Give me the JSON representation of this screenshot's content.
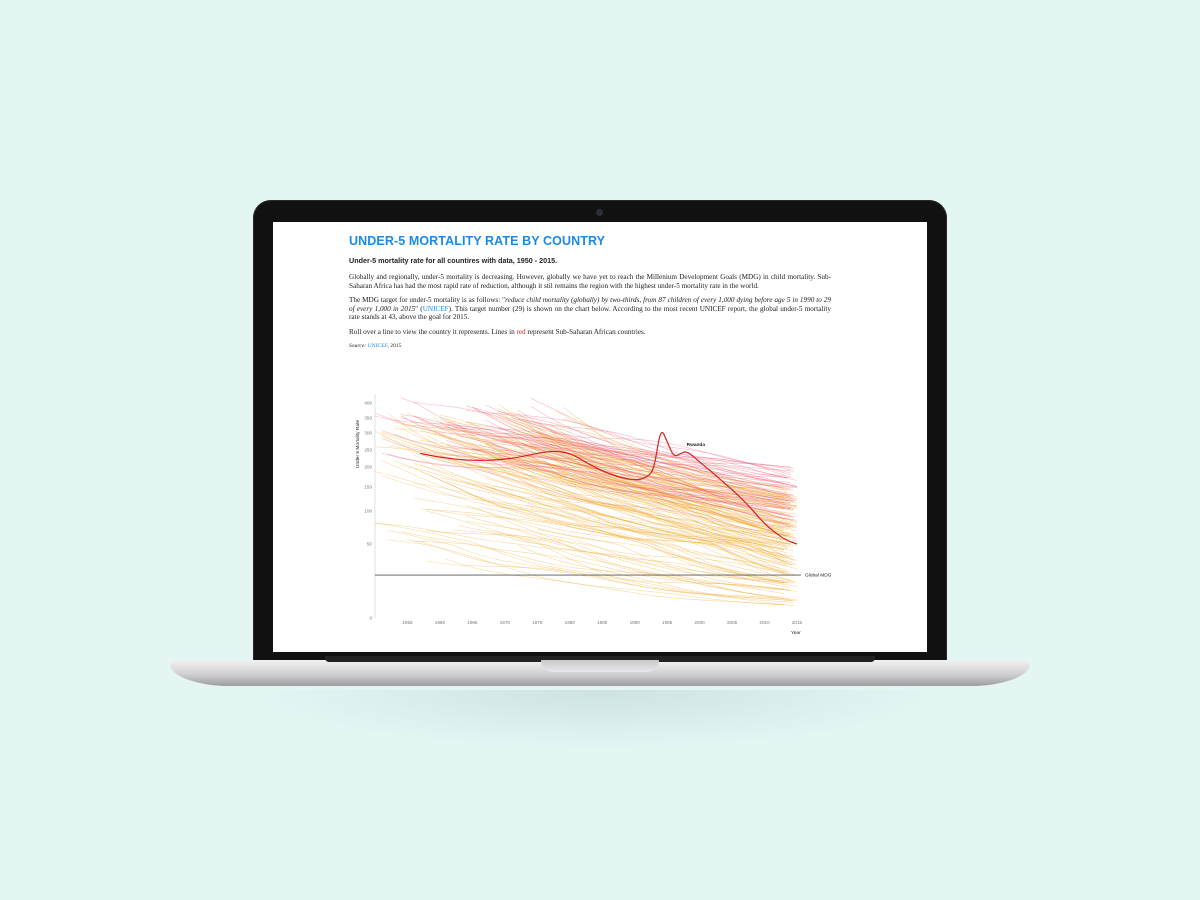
{
  "page": {
    "title": "UNDER-5 MORTALITY RATE BY COUNTRY",
    "subtitle": "Under-5 mortality rate for all countires with data, 1950 - 2015.",
    "para1": "Globally and regionally, under-5 mortality is decreasing. However, globally we have yet to reach the Millenium Development Goals (MDG) in child mortality. Sub-Saharan Africa has had the most rapid rate of reduction, although it stil remains the region with the highest under-5 mortality rate in the world.",
    "para2_a": "The MDG target for under-5 mortality is as follows: \"",
    "para2_b": "reduce child mortality (globally) by two-thirds, from 87 children of every 1,000 dying before age 5 in 1990 to 29 of every 1,000 in 2015",
    "para2_c": "\" (",
    "para2_link": "UNICEF",
    "para2_d": "). This target number (29) is shown on the chart below. According to the most recent UNICEF report, the global under-5 mortality rate stands at 43, above the goal for 2015.",
    "para3_a": "Roll over a line to view the country it represents. Lines in ",
    "para3_red": "red",
    "para3_b": " represent Sub-Saharan African countries.",
    "source_label": "Source:",
    "source_link": "UNICEF",
    "source_year": ", 2015"
  },
  "colors": {
    "background": "#e3f6f4",
    "title": "#1a8ae6",
    "ssa_line": "#f0506e",
    "other_line": "#f5a623",
    "highlight": "#d8201f",
    "mdg_line": "#555555"
  },
  "chart_data": {
    "type": "line",
    "title": "",
    "xlabel": "Year",
    "ylabel": "Under 5 Mortality Rate",
    "xlim": [
      1950,
      2015
    ],
    "ylim": [
      0,
      420
    ],
    "x_ticks": [
      1955,
      1960,
      1965,
      1970,
      1975,
      1980,
      1985,
      1990,
      1995,
      2000,
      2005,
      2010,
      2015
    ],
    "y_ticks": [
      0,
      50,
      100,
      150,
      200,
      250,
      300,
      350,
      400
    ],
    "reference_line": {
      "name": "Global MDG",
      "value": 29
    },
    "highlight_series": {
      "name": "Rwanda",
      "points": [
        [
          1957,
          240
        ],
        [
          1960,
          228
        ],
        [
          1965,
          218
        ],
        [
          1970,
          222
        ],
        [
          1973,
          232
        ],
        [
          1977,
          248
        ],
        [
          1980,
          242
        ],
        [
          1983,
          208
        ],
        [
          1986,
          182
        ],
        [
          1990,
          165
        ],
        [
          1992,
          175
        ],
        [
          1993,
          195
        ],
        [
          1994,
          320
        ],
        [
          1995,
          275
        ],
        [
          1996,
          230
        ],
        [
          1997,
          238
        ],
        [
          1998,
          248
        ],
        [
          2000,
          215
        ],
        [
          2003,
          172
        ],
        [
          2007,
          120
        ],
        [
          2010,
          80
        ],
        [
          2013,
          57
        ],
        [
          2015,
          50
        ]
      ]
    },
    "series_count_ssa": 48,
    "series_count_other": 140
  }
}
